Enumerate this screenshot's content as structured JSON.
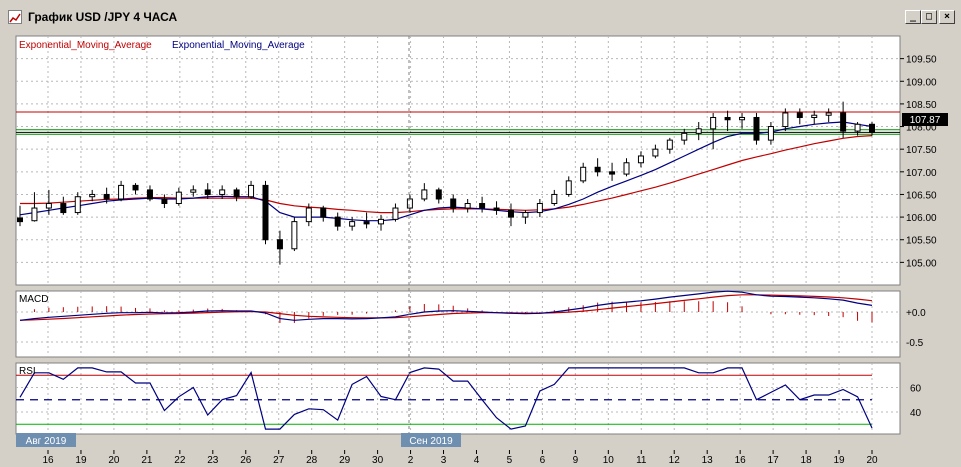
{
  "window": {
    "title": "График USD /JPY  4 ЧАСА",
    "buttons": [
      "_",
      "□",
      "×"
    ]
  },
  "chart_data": {
    "type": "candlestick",
    "symbol": "USD/JPY",
    "timeframe": "4 ЧАСА",
    "legend": [
      {
        "text": "Exponential_Moving_Average",
        "color": "#c00000"
      },
      {
        "text": "Exponential_Moving_Average",
        "color": "#000080"
      }
    ],
    "price_axis": {
      "ticks": [
        109.5,
        109.0,
        108.5,
        108.0,
        107.5,
        107.0,
        106.5,
        106.0,
        105.5,
        105.0
      ],
      "tick_labels": [
        "109.50",
        "109.00",
        "108.50",
        "108.00",
        "107.50",
        "107.00",
        "106.50",
        "106.00",
        "105.50",
        "105.00"
      ],
      "ylim": [
        104.5,
        110.0
      ]
    },
    "current_price_label": "107.87",
    "levels": [
      {
        "value": 108.32,
        "color": "#c00000"
      },
      {
        "value": 107.93,
        "color": "#009000"
      },
      {
        "value": 107.83,
        "color": "#009000"
      },
      {
        "value": 107.87,
        "color": "#000000"
      }
    ],
    "x_axis": {
      "day_labels": [
        "16",
        "19",
        "20",
        "21",
        "22",
        "23",
        "26",
        "27",
        "28",
        "29",
        "30",
        "2",
        "3",
        "4",
        "5",
        "6",
        "9",
        "10",
        "11",
        "12",
        "13",
        "16",
        "17",
        "18",
        "19",
        "20"
      ],
      "month_labels": [
        "Авг 2019",
        "Сен 2019"
      ]
    },
    "candles": [
      [
        105.98,
        106.25,
        105.8,
        105.9
      ],
      [
        105.92,
        106.55,
        105.9,
        106.2
      ],
      [
        106.2,
        106.6,
        106.05,
        106.3
      ],
      [
        106.3,
        106.45,
        106.05,
        106.1
      ],
      [
        106.1,
        106.55,
        106.05,
        106.45
      ],
      [
        106.45,
        106.6,
        106.35,
        106.5
      ],
      [
        106.5,
        106.65,
        106.3,
        106.4
      ],
      [
        106.4,
        106.8,
        106.35,
        106.7
      ],
      [
        106.7,
        106.75,
        106.5,
        106.6
      ],
      [
        106.6,
        106.7,
        106.35,
        106.4
      ],
      [
        106.4,
        106.5,
        106.2,
        106.3
      ],
      [
        106.3,
        106.65,
        106.25,
        106.55
      ],
      [
        106.55,
        106.7,
        106.45,
        106.6
      ],
      [
        106.6,
        106.75,
        106.4,
        106.5
      ],
      [
        106.5,
        106.7,
        106.4,
        106.6
      ],
      [
        106.6,
        106.65,
        106.35,
        106.45
      ],
      [
        106.45,
        106.8,
        106.4,
        106.7
      ],
      [
        106.7,
        106.8,
        105.4,
        105.5
      ],
      [
        105.5,
        105.7,
        104.95,
        105.3
      ],
      [
        105.3,
        106.0,
        105.25,
        105.9
      ],
      [
        105.9,
        106.3,
        105.8,
        106.2
      ],
      [
        106.2,
        106.25,
        105.9,
        106.0
      ],
      [
        106.0,
        106.1,
        105.7,
        105.8
      ],
      [
        105.8,
        106.0,
        105.7,
        105.9
      ],
      [
        105.9,
        106.1,
        105.75,
        105.85
      ],
      [
        105.85,
        106.05,
        105.7,
        105.95
      ],
      [
        105.95,
        106.3,
        105.9,
        106.2
      ],
      [
        106.2,
        106.5,
        106.1,
        106.4
      ],
      [
        106.4,
        106.75,
        106.35,
        106.6
      ],
      [
        106.6,
        106.65,
        106.3,
        106.4
      ],
      [
        106.4,
        106.5,
        106.1,
        106.2
      ],
      [
        106.2,
        106.4,
        106.1,
        106.3
      ],
      [
        106.3,
        106.45,
        106.1,
        106.2
      ],
      [
        106.2,
        106.35,
        106.05,
        106.15
      ],
      [
        106.15,
        106.3,
        105.8,
        106.0
      ],
      [
        106.0,
        106.15,
        105.85,
        106.1
      ],
      [
        106.1,
        106.4,
        106.0,
        106.3
      ],
      [
        106.3,
        106.6,
        106.25,
        106.5
      ],
      [
        106.5,
        106.9,
        106.45,
        106.8
      ],
      [
        106.8,
        107.2,
        106.75,
        107.1
      ],
      [
        107.1,
        107.3,
        106.9,
        107.0
      ],
      [
        107.0,
        107.2,
        106.8,
        106.95
      ],
      [
        106.95,
        107.3,
        106.9,
        107.2
      ],
      [
        107.2,
        107.45,
        107.1,
        107.35
      ],
      [
        107.35,
        107.6,
        107.3,
        107.5
      ],
      [
        107.5,
        107.75,
        107.4,
        107.7
      ],
      [
        107.7,
        107.95,
        107.6,
        107.85
      ],
      [
        107.85,
        108.1,
        107.7,
        107.95
      ],
      [
        107.95,
        108.3,
        107.5,
        108.2
      ],
      [
        108.2,
        108.35,
        107.9,
        108.15
      ],
      [
        108.15,
        108.3,
        107.95,
        108.2
      ],
      [
        108.2,
        108.3,
        107.6,
        107.7
      ],
      [
        107.7,
        108.1,
        107.6,
        108.0
      ],
      [
        108.0,
        108.4,
        107.9,
        108.3
      ],
      [
        108.3,
        108.4,
        108.05,
        108.2
      ],
      [
        108.2,
        108.35,
        108.05,
        108.25
      ],
      [
        108.25,
        108.4,
        108.1,
        108.3
      ],
      [
        108.3,
        108.55,
        107.75,
        107.9
      ],
      [
        107.9,
        108.1,
        107.8,
        108.05
      ],
      [
        108.05,
        108.1,
        107.8,
        107.87
      ]
    ],
    "ema_fast": [
      106.05,
      106.1,
      106.15,
      106.2,
      106.25,
      106.3,
      106.35,
      106.38,
      106.4,
      106.42,
      106.4,
      106.4,
      106.42,
      106.45,
      106.46,
      106.45,
      106.45,
      106.35,
      106.1,
      106.0,
      106.0,
      106.0,
      105.97,
      105.94,
      105.92,
      105.92,
      105.95,
      106.05,
      106.15,
      106.2,
      106.22,
      106.2,
      106.18,
      106.15,
      106.12,
      106.1,
      106.12,
      106.18,
      106.28,
      106.4,
      106.55,
      106.68,
      106.8,
      106.92,
      107.05,
      107.2,
      107.35,
      107.5,
      107.65,
      107.78,
      107.85,
      107.85,
      107.88,
      107.95,
      108.0,
      108.05,
      108.08,
      108.1,
      108.05,
      108.0
    ],
    "ema_slow": [
      106.3,
      106.3,
      106.31,
      106.33,
      106.35,
      106.37,
      106.39,
      106.4,
      106.42,
      106.43,
      106.43,
      106.42,
      106.42,
      106.42,
      106.42,
      106.42,
      106.42,
      106.38,
      106.3,
      106.25,
      106.22,
      106.2,
      106.17,
      106.15,
      106.12,
      106.1,
      106.1,
      106.12,
      106.15,
      106.17,
      106.18,
      106.18,
      106.18,
      106.17,
      106.16,
      106.15,
      106.16,
      106.18,
      106.22,
      106.28,
      106.35,
      106.42,
      106.5,
      106.58,
      106.66,
      106.75,
      106.85,
      106.95,
      107.05,
      107.15,
      107.25,
      107.33,
      107.4,
      107.48,
      107.55,
      107.62,
      107.68,
      107.74,
      107.78,
      107.8
    ],
    "macd": {
      "label": "MACD",
      "tick_labels": [
        "+0.0",
        "-0.5"
      ],
      "ticks": [
        0.0,
        -0.5
      ],
      "ylim": [
        -0.75,
        0.35
      ]
    },
    "rsi": {
      "label": "RSI",
      "tick_labels": [
        "60",
        "40"
      ],
      "ticks": [
        60,
        40
      ],
      "ylim": [
        22,
        80
      ],
      "overbought": 70,
      "oversold": 30,
      "middle": 50
    }
  }
}
